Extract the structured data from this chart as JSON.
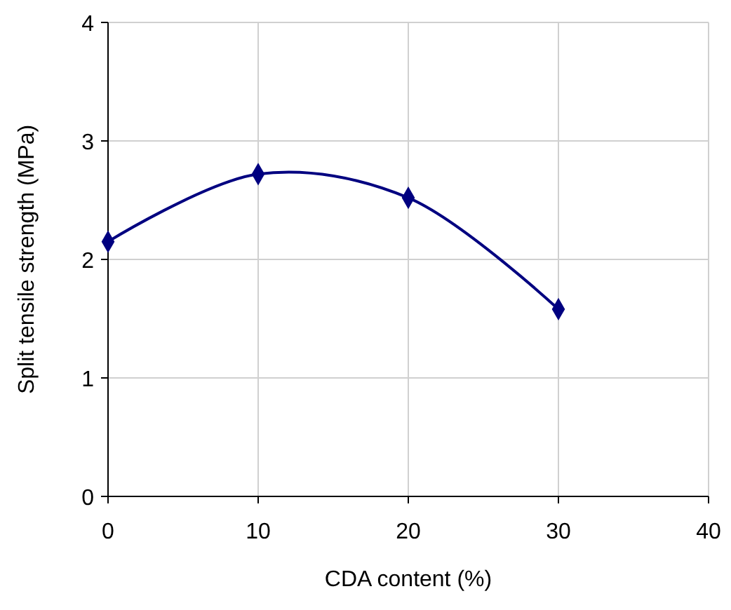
{
  "chart_data": {
    "type": "line",
    "xlabel": "CDA content (%)",
    "ylabel": "Split tensile strength (MPa)",
    "x": [
      0,
      10,
      20,
      30
    ],
    "series": [
      {
        "color": "#000080",
        "values": [
          2.15,
          2.72,
          2.52,
          1.58
        ]
      }
    ],
    "xlim": [
      0,
      40
    ],
    "xticks": [
      0,
      10,
      20,
      30,
      40
    ],
    "ylim": [
      0,
      4
    ],
    "yticks": [
      0,
      1,
      2,
      3,
      4
    ],
    "grid": true,
    "marker": "diamond",
    "line_style": "solid"
  }
}
